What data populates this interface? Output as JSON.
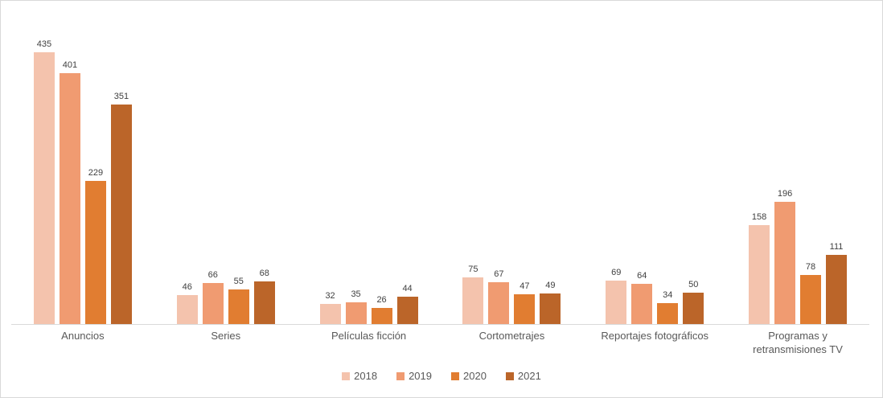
{
  "chart_data": {
    "type": "bar",
    "title": "",
    "xlabel": "",
    "ylabel": "",
    "categories": [
      "Anuncios",
      "Series",
      "Películas ficción",
      "Cortometrajes",
      "Reportajes fotográficos",
      "Programas y retransmisiones TV"
    ],
    "series": [
      {
        "name": "2018",
        "color": "#F4C3AD",
        "values": [
          435,
          46,
          32,
          75,
          69,
          158
        ]
      },
      {
        "name": "2019",
        "color": "#F09B71",
        "values": [
          401,
          66,
          35,
          67,
          64,
          196
        ]
      },
      {
        "name": "2020",
        "color": "#E17D31",
        "values": [
          229,
          55,
          26,
          47,
          34,
          78
        ]
      },
      {
        "name": "2021",
        "color": "#BB6529",
        "values": [
          351,
          68,
          44,
          49,
          50,
          111
        ]
      }
    ],
    "ylim": [
      0,
      500
    ],
    "grid": false,
    "data_labels": true,
    "legend_position": "bottom"
  },
  "colors": {
    "background": "#ffffff",
    "border": "#d9d9d9",
    "axis_line": "#d9d9d9",
    "data_label_text": "#404040",
    "category_label_text": "#595959",
    "legend_text": "#595959"
  }
}
